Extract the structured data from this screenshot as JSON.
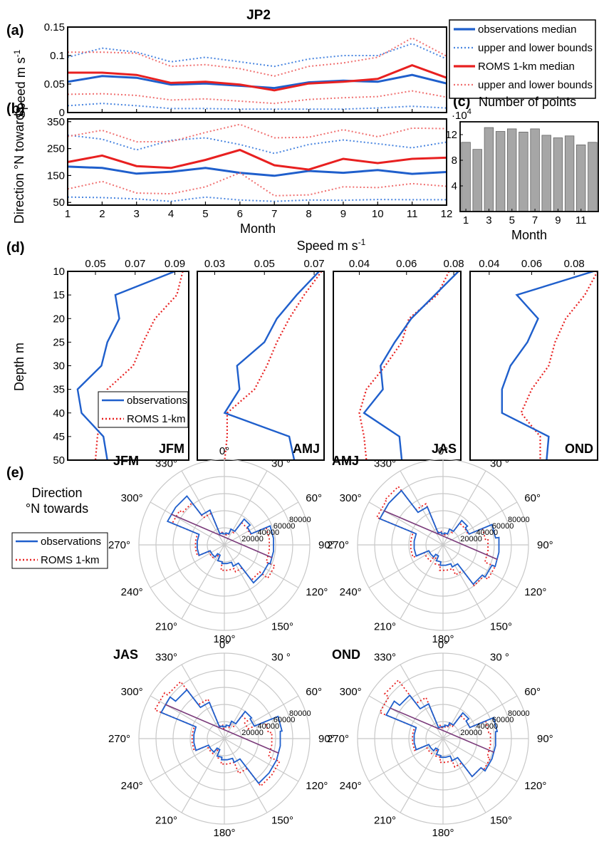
{
  "figure_title": "JP2",
  "panel_labels": [
    "(a)",
    "(b)",
    "(c)",
    "(d)",
    "(e)"
  ],
  "colors": {
    "observations": "#1f5fcc",
    "roms": "#e82020",
    "observations_bounds": "#4a86e0",
    "roms_bounds": "#f07070",
    "bars": "#a6a6a6",
    "grid": "#c8c8c8"
  },
  "chart_data": [
    {
      "id": "a",
      "type": "line",
      "ylabel": "Speed m s-1",
      "ylim": [
        0,
        0.15
      ],
      "yticks": [
        "0",
        "0.05",
        "0.1",
        "0.15"
      ],
      "x": [
        1,
        2,
        3,
        4,
        5,
        6,
        7,
        8,
        9,
        10,
        11,
        12
      ],
      "series": [
        {
          "name": "observations median",
          "style": "solid",
          "color": "observations",
          "values": [
            0.054,
            0.064,
            0.061,
            0.049,
            0.051,
            0.047,
            0.043,
            0.053,
            0.056,
            0.054,
            0.066,
            0.051
          ]
        },
        {
          "name": "upper and lower bounds",
          "style": "dotted",
          "color": "observations_bounds",
          "values": [
            0.097,
            0.113,
            0.106,
            0.089,
            0.097,
            0.089,
            0.081,
            0.094,
            0.1,
            0.1,
            0.121,
            0.094
          ]
        },
        {
          "name": "",
          "style": "dotted",
          "color": "observations_bounds",
          "values": [
            0.012,
            0.016,
            0.012,
            0.007,
            0.007,
            0.006,
            0.006,
            0.006,
            0.006,
            0.008,
            0.011,
            0.008
          ]
        },
        {
          "name": "ROMS 1-km median",
          "style": "solid",
          "color": "roms",
          "values": [
            0.07,
            0.07,
            0.066,
            0.052,
            0.054,
            0.049,
            0.039,
            0.051,
            0.054,
            0.059,
            0.083,
            0.061
          ]
        },
        {
          "name": "upper and lower bounds",
          "style": "dotted",
          "color": "roms_bounds",
          "values": [
            0.106,
            0.106,
            0.104,
            0.081,
            0.084,
            0.077,
            0.064,
            0.081,
            0.087,
            0.097,
            0.131,
            0.099
          ]
        },
        {
          "name": "",
          "style": "dotted",
          "color": "roms_bounds",
          "values": [
            0.032,
            0.033,
            0.03,
            0.022,
            0.024,
            0.02,
            0.016,
            0.023,
            0.026,
            0.028,
            0.038,
            0.027
          ]
        }
      ]
    },
    {
      "id": "b",
      "type": "line",
      "ylabel": "Direction °N towards",
      "xlabel": "Month",
      "ylim": [
        40,
        360
      ],
      "yticks": [
        50,
        150,
        250,
        350
      ],
      "xticks": [
        1,
        2,
        3,
        4,
        5,
        6,
        7,
        8,
        9,
        10,
        11,
        12
      ],
      "x": [
        1,
        2,
        3,
        4,
        5,
        6,
        7,
        8,
        9,
        10,
        11,
        12
      ],
      "series": [
        {
          "name": "observations median",
          "style": "solid",
          "color": "observations",
          "values": [
            183,
            178,
            157,
            164,
            178,
            160,
            149,
            167,
            160,
            170,
            156,
            163
          ]
        },
        {
          "name": "upper and lower bounds",
          "style": "dotted",
          "color": "observations_bounds",
          "values": [
            300,
            285,
            245,
            281,
            290,
            265,
            232,
            265,
            282,
            268,
            253,
            274
          ]
        },
        {
          "name": "",
          "style": "dotted",
          "color": "observations_bounds",
          "values": [
            70,
            68,
            63,
            54,
            70,
            59,
            54,
            59,
            58,
            61,
            60,
            60
          ]
        },
        {
          "name": "ROMS 1-km median",
          "style": "solid",
          "color": "roms",
          "values": [
            200,
            224,
            185,
            178,
            208,
            245,
            188,
            172,
            212,
            196,
            212,
            216
          ]
        },
        {
          "name": "upper and lower bounds",
          "style": "dotted",
          "color": "roms_bounds",
          "values": [
            295,
            318,
            275,
            276,
            310,
            340,
            290,
            292,
            320,
            294,
            326,
            324
          ]
        },
        {
          "name": "",
          "style": "dotted",
          "color": "roms_bounds",
          "values": [
            100,
            128,
            85,
            82,
            108,
            160,
            75,
            78,
            108,
            105,
            120,
            110
          ]
        }
      ]
    },
    {
      "id": "c",
      "type": "bar",
      "title": "Number of points",
      "xlabel": "Month",
      "scale_label": "·10",
      "scale_exp": "4",
      "ylim": [
        0,
        14
      ],
      "yticks": [
        4,
        8,
        12
      ],
      "xticks": [
        1,
        3,
        5,
        7,
        9,
        11
      ],
      "categories": [
        1,
        2,
        3,
        4,
        5,
        6,
        7,
        8,
        9,
        10,
        11,
        12
      ],
      "values": [
        10.8,
        9.7,
        13.1,
        12.5,
        12.9,
        12.4,
        12.9,
        11.9,
        11.5,
        11.8,
        10.4,
        10.8
      ]
    },
    {
      "id": "d",
      "type": "line",
      "title": "Speed m s-1",
      "ylabel": "Depth m",
      "ylim": [
        10,
        50
      ],
      "yticks": [
        10,
        15,
        20,
        25,
        30,
        35,
        40,
        45,
        50
      ],
      "depth": [
        10,
        15,
        20,
        25,
        30,
        35,
        40,
        45,
        50
      ],
      "legend": [
        "observations",
        "ROMS 1-km"
      ],
      "panels": [
        {
          "season": "JFM",
          "xlim": [
            0.036,
            0.097
          ],
          "xticks": [
            "0.05",
            "0.07",
            "0.09"
          ],
          "observations": [
            0.09,
            0.06,
            0.062,
            0.056,
            0.053,
            0.041,
            0.043,
            0.054,
            0.056
          ],
          "roms": [
            0.094,
            0.091,
            0.08,
            0.074,
            0.069,
            0.056,
            0.053,
            0.051,
            0.05
          ]
        },
        {
          "season": "AMJ",
          "xlim": [
            0.023,
            0.074
          ],
          "xticks": [
            "0.03",
            "0.05",
            "0.07"
          ],
          "observations": [
            0.072,
            0.063,
            0.055,
            0.05,
            0.039,
            0.04,
            0.034,
            0.06,
            0.062
          ],
          "roms": [
            0.073,
            0.066,
            0.06,
            0.055,
            0.051,
            0.046,
            0.035,
            0.035,
            0.034
          ]
        },
        {
          "season": "JAS",
          "xlim": [
            0.029,
            0.083
          ],
          "xticks": [
            "0.04",
            "0.06",
            "0.08"
          ],
          "observations": [
            0.082,
            0.072,
            0.062,
            0.055,
            0.049,
            0.05,
            0.042,
            0.057,
            0.058
          ],
          "roms": [
            0.078,
            0.073,
            0.061,
            0.058,
            0.051,
            0.043,
            0.04,
            0.042,
            0.043
          ]
        },
        {
          "season": "OND",
          "xlim": [
            0.031,
            0.091
          ],
          "xticks": [
            "0.04",
            "0.06",
            "0.08"
          ],
          "observations": [
            0.089,
            0.053,
            0.063,
            0.058,
            0.05,
            0.046,
            0.046,
            0.068,
            0.067
          ],
          "roms": [
            0.091,
            0.085,
            0.076,
            0.071,
            0.068,
            0.06,
            0.055,
            0.064,
            0.064
          ]
        }
      ]
    },
    {
      "id": "e",
      "type": "polar",
      "title": "Direction °N towards",
      "legend": [
        "observations",
        "ROMS 1-km"
      ],
      "angle_labels": [
        "0°",
        "30 °",
        "60°",
        "90°",
        "120°",
        "150°",
        "180°",
        "210°",
        "240°",
        "270°",
        "300°",
        "330°"
      ],
      "radial_max": 80000,
      "radial_ticks": [
        20000,
        40000,
        60000,
        80000
      ],
      "bin_directions": [
        0,
        15,
        30,
        45,
        60,
        75,
        90,
        105,
        120,
        135,
        150,
        165,
        180,
        195,
        210,
        225,
        240,
        255,
        270,
        285,
        300,
        315,
        330,
        345
      ],
      "panels": [
        {
          "season": "JFM",
          "observations": [
            13000,
            14000,
            20000,
            38000,
            34000,
            58000,
            58000,
            58000,
            56000,
            56000,
            27000,
            22000,
            22000,
            20000,
            13000,
            18000,
            18000,
            32000,
            32000,
            32000,
            72000,
            72000,
            44000,
            14000
          ],
          "roms": [
            13000,
            12000,
            18000,
            33000,
            33000,
            53000,
            53000,
            53000,
            64000,
            52000,
            34000,
            30000,
            30000,
            20000,
            15000,
            20000,
            20000,
            34000,
            34000,
            34000,
            66000,
            62000,
            40000,
            15000
          ]
        },
        {
          "season": "AMJ",
          "observations": [
            13000,
            14000,
            20000,
            36000,
            33000,
            62000,
            66000,
            66000,
            62000,
            58000,
            28000,
            24000,
            24000,
            20000,
            14000,
            18000,
            18000,
            34000,
            34000,
            34000,
            80000,
            80000,
            48000,
            15000
          ],
          "roms": [
            13000,
            12000,
            18000,
            32000,
            32000,
            50000,
            53000,
            53000,
            66000,
            60000,
            38000,
            30000,
            30000,
            24000,
            18000,
            24000,
            24000,
            38000,
            38000,
            38000,
            84000,
            86000,
            52000,
            16000
          ]
        },
        {
          "season": "JAS",
          "observations": [
            14000,
            16000,
            22000,
            40000,
            38000,
            68000,
            66000,
            66000,
            66000,
            66000,
            30000,
            25000,
            25000,
            22000,
            14000,
            20000,
            20000,
            36000,
            36000,
            36000,
            80000,
            72000,
            46000,
            15000
          ],
          "roms": [
            12000,
            14000,
            18000,
            34000,
            30000,
            52000,
            56000,
            56000,
            70000,
            70000,
            44000,
            30000,
            30000,
            24000,
            16000,
            22000,
            22000,
            38000,
            38000,
            38000,
            88000,
            84000,
            50000,
            16000
          ]
        },
        {
          "season": "OND",
          "observations": [
            14000,
            16000,
            20000,
            38000,
            34000,
            64000,
            62000,
            62000,
            62000,
            56000,
            28000,
            22000,
            22000,
            20000,
            14000,
            18000,
            18000,
            34000,
            34000,
            34000,
            72000,
            64000,
            44000,
            14000
          ],
          "roms": [
            13000,
            14000,
            18000,
            34000,
            34000,
            54000,
            56000,
            56000,
            60000,
            56000,
            36000,
            28000,
            28000,
            22000,
            16000,
            22000,
            22000,
            36000,
            36000,
            36000,
            80000,
            86000,
            52000,
            16000
          ]
        }
      ]
    }
  ]
}
